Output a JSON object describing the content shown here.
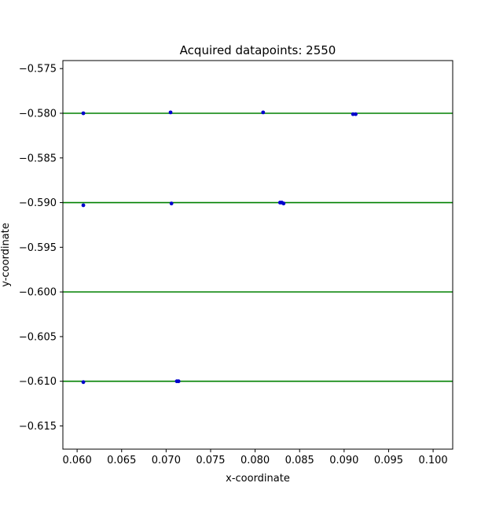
{
  "chart_data": {
    "type": "scatter",
    "title": "Acquired datapoints: 2550",
    "xlabel": "x-coordinate",
    "ylabel": "y-coordinate",
    "xlim": [
      0.0584,
      0.1022
    ],
    "ylim": [
      -0.6176,
      -0.5741
    ],
    "x_ticks": [
      0.06,
      0.065,
      0.07,
      0.075,
      0.08,
      0.085,
      0.09,
      0.095,
      0.1
    ],
    "x_tick_labels": [
      "0.060",
      "0.065",
      "0.070",
      "0.075",
      "0.080",
      "0.085",
      "0.090",
      "0.095",
      "0.100"
    ],
    "y_ticks": [
      -0.575,
      -0.58,
      -0.585,
      -0.59,
      -0.595,
      -0.6,
      -0.605,
      -0.61,
      -0.615
    ],
    "y_tick_labels": [
      "−0.575",
      "−0.580",
      "−0.585",
      "−0.590",
      "−0.595",
      "−0.600",
      "−0.605",
      "−0.610",
      "−0.615"
    ],
    "grid": false,
    "reference_lines": {
      "orientation": "horizontal",
      "color": "#008000",
      "y": [
        -0.58,
        -0.59,
        -0.6,
        -0.61
      ]
    },
    "points": {
      "color": "#0000cc",
      "x": [
        0.0607,
        0.0705,
        0.0809,
        0.091,
        0.0913,
        0.0607,
        0.0706,
        0.0828,
        0.083,
        0.0832,
        0.0607,
        0.0712,
        0.0714
      ],
      "y": [
        -0.58,
        -0.5799,
        -0.5799,
        -0.5801,
        -0.5801,
        -0.5903,
        -0.5901,
        -0.59,
        -0.59,
        -0.5901,
        -0.6101,
        -0.61,
        -0.61
      ]
    }
  }
}
